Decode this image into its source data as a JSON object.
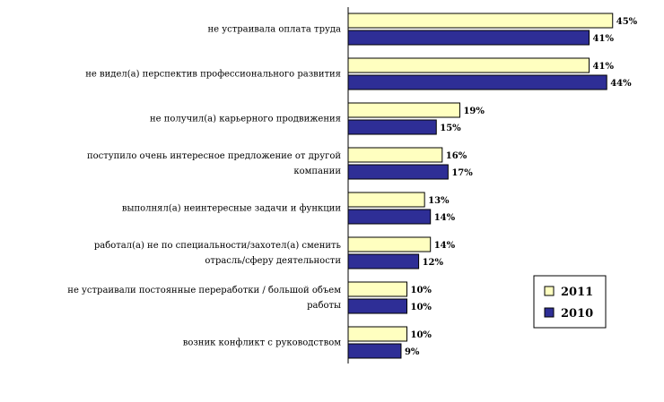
{
  "chart_data": {
    "type": "bar",
    "orientation": "horizontal",
    "categories": [
      [
        "не устраивала оплата труда"
      ],
      [
        "не видел(а) перспектив профессионального развития"
      ],
      [
        "не получил(а) карьерного продвижения"
      ],
      [
        "поступило очень интересное предложение от другой",
        "компании"
      ],
      [
        "выполнял(а) неинтересные задачи и функции"
      ],
      [
        "работал(а) не по специальности/захотел(а) сменить",
        "отрасль/сферу деятельности"
      ],
      [
        "не устраивали постоянные переработки / большой объем",
        "работы"
      ],
      [
        "возник конфликт с руководством"
      ]
    ],
    "series": [
      {
        "name": "2011",
        "color": "#FFFFC0",
        "values": [
          45,
          41,
          19,
          16,
          13,
          14,
          10,
          10
        ]
      },
      {
        "name": "2010",
        "color": "#2E2E96",
        "values": [
          41,
          44,
          15,
          17,
          14,
          12,
          10,
          9
        ]
      }
    ],
    "value_suffix": "%",
    "xlim": [
      0,
      50
    ],
    "grid": false,
    "legend_position": "bottom-right",
    "legend_order": [
      "2011",
      "2010"
    ]
  }
}
